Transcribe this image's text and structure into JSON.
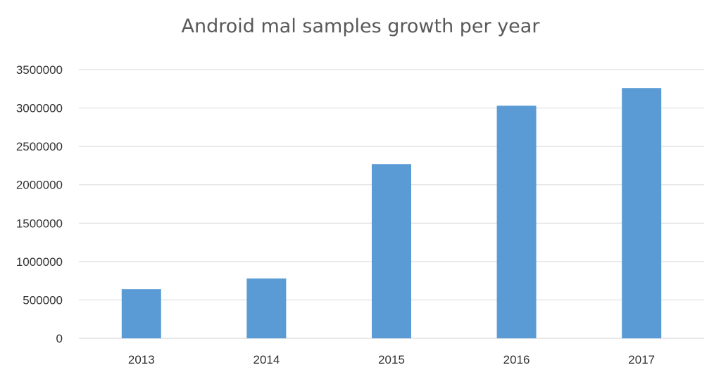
{
  "chart_data": {
    "type": "bar",
    "title": "Android mal samples growth per year",
    "categories": [
      "2013",
      "2014",
      "2015",
      "2016",
      "2017"
    ],
    "values": [
      640000,
      780000,
      2270000,
      3030000,
      3260000
    ],
    "ylim": [
      0,
      3500000
    ],
    "yticks": [
      "0",
      "500000",
      "1000000",
      "1500000",
      "2000000",
      "2500000",
      "3000000",
      "3500000"
    ],
    "xlabel": "",
    "ylabel": "",
    "grid": true,
    "legend": "none",
    "bar_color": "#5b9bd5"
  }
}
